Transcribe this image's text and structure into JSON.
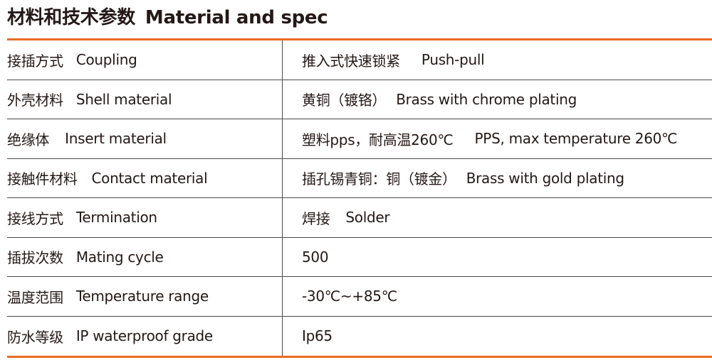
{
  "title": {
    "cn": "材料和技术参数",
    "en": "Material and spec"
  },
  "accent_color": "#ec6b1f",
  "rows": [
    {
      "label_cn": "接插方式",
      "label_en": "Coupling",
      "value_cn": "推入式快速锁紧",
      "value_en": "Push-pull"
    },
    {
      "label_cn": "外壳材料",
      "label_en": "Shell material",
      "value_cn": "黄铜（镀铬）",
      "value_en": "Brass with chrome plating"
    },
    {
      "label_cn": "绝缘体",
      "label_en": "Insert material",
      "value_cn": "塑料pps，耐高温260℃",
      "value_en": "PPS, max temperature 260℃"
    },
    {
      "label_cn": "接触件材料",
      "label_en": "Contact material",
      "value_cn": "插孔锡青铜：铜（镀金）",
      "value_en": "Brass with gold plating"
    },
    {
      "label_cn": "接线方式",
      "label_en": "Termination",
      "value_cn": "焊接",
      "value_en": "Solder"
    },
    {
      "label_cn": "插拔次数",
      "label_en": "Mating cycle",
      "value_cn": "",
      "value_en": "500"
    },
    {
      "label_cn": "温度范围",
      "label_en": "Temperature range",
      "value_cn": "",
      "value_en": "-30℃~+85℃"
    },
    {
      "label_cn": "防水等级",
      "label_en": "IP waterproof grade",
      "value_cn": "",
      "value_en": "Ip65"
    }
  ]
}
